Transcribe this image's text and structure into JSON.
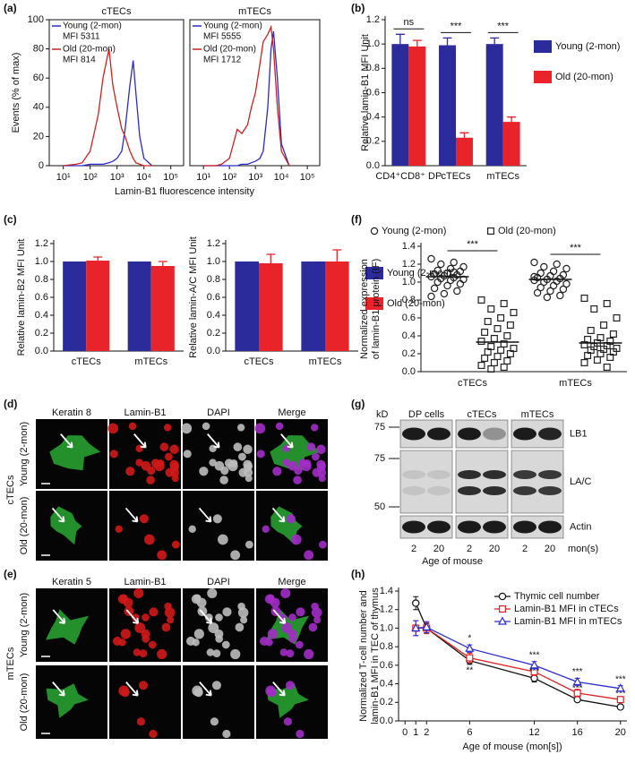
{
  "panel_labels": {
    "a": "(a)",
    "b": "(b)",
    "c": "(c)",
    "f": "(f)",
    "d": "(d)",
    "g": "(g)",
    "e": "(e)",
    "h": "(h)"
  },
  "chart_data": [
    {
      "type": "line",
      "title": "cTECs",
      "y_label": "Events (% of max)",
      "x_label": "Lamin-B1 fluorescence intensity",
      "log_x": true,
      "x": [
        10,
        30,
        50,
        100,
        200,
        300,
        500,
        700,
        1000,
        1500,
        2000,
        3000,
        4000,
        5000,
        7000,
        10000,
        20000
      ],
      "xlim": [
        3,
        300000
      ],
      "xticks": [
        {
          "value": 10,
          "label": "10¹"
        },
        {
          "value": 100,
          "label": "10²"
        },
        {
          "value": 1000,
          "label": "10³"
        },
        {
          "value": 10000,
          "label": "10⁴"
        },
        {
          "value": 100000,
          "label": "10⁵"
        }
      ],
      "ylim": [
        0,
        100
      ],
      "yticks": [
        0,
        20,
        40,
        60,
        80,
        100
      ],
      "legend": "top-left",
      "series": [
        {
          "name": "Young (2-mon)",
          "annotation": "MFI 5311",
          "color": "#2a2ad0",
          "values": [
            0,
            0,
            0,
            1,
            1,
            1,
            2,
            3,
            5,
            10,
            25,
            55,
            72,
            50,
            20,
            5,
            0
          ]
        },
        {
          "name": "Old (20-mon)",
          "annotation": "MFI 814",
          "color": "#d02020",
          "values": [
            0,
            1,
            2,
            10,
            35,
            60,
            80,
            55,
            40,
            25,
            20,
            10,
            5,
            2,
            1,
            0,
            0
          ]
        }
      ]
    },
    {
      "type": "line",
      "title": "mTECs",
      "log_x": true,
      "x": [
        10,
        30,
        50,
        100,
        200,
        300,
        500,
        700,
        1000,
        1500,
        2000,
        3000,
        4000,
        5000,
        7000,
        10000,
        20000
      ],
      "xlim": [
        3,
        300000
      ],
      "xticks": [
        {
          "value": 10,
          "label": "10¹"
        },
        {
          "value": 100,
          "label": "10²"
        },
        {
          "value": 1000,
          "label": "10³"
        },
        {
          "value": 10000,
          "label": "10⁴"
        },
        {
          "value": 100000,
          "label": "10⁵"
        }
      ],
      "ylim": [
        0,
        100
      ],
      "legend": "top-left",
      "series": [
        {
          "name": "Young (2-mon)",
          "annotation": "MFI 5555",
          "color": "#2a2ad0",
          "values": [
            0,
            0,
            0,
            0,
            0,
            1,
            1,
            2,
            3,
            5,
            10,
            40,
            80,
            92,
            60,
            15,
            0
          ]
        },
        {
          "name": "Old (20-mon)",
          "annotation": "MFI 1712",
          "color": "#d02020",
          "values": [
            0,
            0,
            1,
            5,
            25,
            22,
            28,
            40,
            50,
            70,
            85,
            90,
            95,
            80,
            40,
            10,
            0
          ]
        }
      ]
    },
    {
      "type": "bar",
      "y_label": "Relative lamin-B1 MFI Unit",
      "categories": [
        "CD4⁺CD8⁺ DP",
        "cTECs",
        "mTECs"
      ],
      "ylim": [
        0,
        1.2
      ],
      "yticks": [
        {
          "value": 0,
          "label": "0.0"
        },
        0.2,
        0.4,
        0.6,
        0.8,
        {
          "value": 1,
          "label": "1.0"
        },
        1.2
      ],
      "annotations": [
        "ns",
        "***",
        "***"
      ],
      "legend": "right",
      "series": [
        {
          "name": "Young (2-mon)",
          "color": "#2b2b9b",
          "values": [
            1.0,
            0.99,
            1.0
          ],
          "errors": [
            0.08,
            0.06,
            0.05
          ]
        },
        {
          "name": "Old (20-mon)",
          "color": "#e8232a",
          "values": [
            0.98,
            0.23,
            0.36
          ],
          "errors": [
            0.05,
            0.04,
            0.04
          ]
        }
      ]
    },
    {
      "type": "bar",
      "y_label": "Relative lamin-B2 MFI Unit",
      "categories": [
        "cTECs",
        "mTECs"
      ],
      "ylim": [
        0,
        1.2
      ],
      "yticks": [
        {
          "value": 0,
          "label": "0.0"
        },
        0.2,
        0.4,
        0.6,
        0.8,
        {
          "value": 1,
          "label": "1.0"
        },
        1.2
      ],
      "series": [
        {
          "color": "#2b2b9b",
          "values": [
            1.0,
            1.0
          ]
        },
        {
          "color": "#e8232a",
          "values": [
            1.01,
            0.95
          ],
          "errors": [
            0.04,
            0.05
          ]
        }
      ]
    },
    {
      "type": "bar",
      "y_label": "Relative lamin-A/C MFI Unit",
      "categories": [
        "cTECs",
        "mTECs"
      ],
      "ylim": [
        0,
        1.2
      ],
      "yticks": [
        {
          "value": 0,
          "label": "0.0"
        },
        0.2,
        0.4,
        0.6,
        0.8,
        {
          "value": 1,
          "label": "1.0"
        },
        1.2
      ],
      "legend": "right",
      "series": [
        {
          "name": "Young (2-mon)",
          "color": "#2b2b9b",
          "values": [
            1.0,
            1.0
          ]
        },
        {
          "name": "Old (20-mon)",
          "color": "#e8232a",
          "values": [
            0.98,
            1.0
          ],
          "errors": [
            0.1,
            0.13
          ]
        }
      ]
    },
    {
      "type": "scatter",
      "y_label": [
        "Normalized  expression",
        "of lamin-B1 protein (IF)"
      ],
      "categories": [
        "cTECs",
        "mTECs"
      ],
      "ylim": [
        0,
        1.4
      ],
      "yticks": [
        {
          "value": 0,
          "label": "0.0"
        },
        0.2,
        0.4,
        0.6,
        0.8,
        {
          "value": 1,
          "label": "1.0"
        },
        1.2,
        1.4
      ],
      "annotations": [
        "***",
        "***"
      ],
      "legend": "top",
      "series": [
        {
          "name": "Young (2-mon)",
          "marker": "circle",
          "color": "#222",
          "values": [
            [
              1.26,
              1.22,
              1.2,
              1.17,
              1.15,
              1.13,
              1.12,
              1.1,
              1.09,
              1.08,
              1.07,
              1.06,
              1.05,
              1.04,
              1.03,
              1.02,
              1.0,
              0.98,
              0.96,
              0.93,
              0.9,
              0.87,
              0.84,
              1.11
            ],
            [
              1.22,
              1.2,
              1.17,
              1.15,
              1.12,
              1.1,
              1.08,
              1.07,
              1.05,
              1.04,
              1.03,
              1.02,
              1.01,
              1.0,
              0.98,
              0.96,
              0.94,
              0.92,
              0.9,
              0.88,
              0.85,
              0.83,
              1.06
            ]
          ],
          "means": [
            1.06,
            1.03
          ]
        },
        {
          "name": "Old (20-mon)",
          "marker": "square",
          "color": "#222",
          "values": [
            [
              0.8,
              0.76,
              0.7,
              0.66,
              0.6,
              0.56,
              0.52,
              0.48,
              0.44,
              0.4,
              0.37,
              0.34,
              0.31,
              0.28,
              0.26,
              0.24,
              0.22,
              0.2,
              0.17,
              0.15,
              0.12,
              0.1,
              0.07,
              0.05,
              0.03
            ],
            [
              0.82,
              0.76,
              0.7,
              0.6,
              0.52,
              0.46,
              0.42,
              0.38,
              0.36,
              0.34,
              0.32,
              0.3,
              0.29,
              0.28,
              0.26,
              0.25,
              0.24,
              0.22,
              0.2,
              0.18,
              0.16,
              0.13,
              0.1,
              0.05
            ]
          ],
          "means": [
            0.33,
            0.32
          ]
        }
      ]
    },
    {
      "type": "line",
      "y_label": [
        "Normalized T-cell number and",
        "lamin-B1 MFI in TEC of thymus"
      ],
      "x_label": "Age of mouse (mon[s])",
      "x": [
        1,
        2,
        6,
        12,
        16,
        20
      ],
      "xlim": [
        -0.6,
        20.6
      ],
      "xticks": [
        0,
        1,
        2,
        6,
        12,
        16,
        20
      ],
      "ylim": [
        0,
        1.4
      ],
      "yticks": [
        {
          "value": 0,
          "label": "0.0"
        },
        0.2,
        0.4,
        0.6,
        0.8,
        {
          "value": 1,
          "label": "1.0"
        },
        1.2,
        1.4
      ],
      "legend": "top-right",
      "series": [
        {
          "name": "Thymic cell number",
          "marker": "circle",
          "color": "#111",
          "values": [
            1.27,
            1.0,
            0.65,
            0.46,
            0.23,
            0.15
          ],
          "errors": [
            0.07,
            0.05,
            0.04,
            0.04,
            0.02,
            0.02
          ]
        },
        {
          "name": "Lamin-B1 MFI in cTECs",
          "marker": "square",
          "color": "#e02020",
          "values": [
            1.0,
            1.0,
            0.68,
            0.53,
            0.3,
            0.23
          ],
          "errors": [
            0.08,
            0.06,
            0.05,
            0.04,
            0.04,
            0.03
          ],
          "annotations": [
            null,
            null,
            "**",
            "***",
            "***",
            "***"
          ]
        },
        {
          "name": "Lamin-B1 MFI in mTECs",
          "marker": "triangle",
          "color": "#2a2ad0",
          "values": [
            1.0,
            1.01,
            0.78,
            0.6,
            0.42,
            0.35
          ],
          "errors": [
            0.08,
            0.06,
            0.04,
            0.04,
            0.04,
            0.03
          ],
          "annotations": [
            null,
            null,
            "*",
            "***",
            "***",
            "***"
          ]
        }
      ]
    }
  ],
  "panel_d": {
    "columns": [
      "Keratin 8",
      "Lamin-B1",
      "DAPI",
      "Merge"
    ],
    "rows": [
      "Young (2-mon)",
      "Old (20-mon)"
    ],
    "group": "cTECs"
  },
  "panel_e": {
    "columns": [
      "Keratin 5",
      "Lamin-B1",
      "DAPI",
      "Merge"
    ],
    "rows": [
      "Young (2-mon)",
      "Old (20-mon)"
    ],
    "group": "mTECs"
  },
  "blot": {
    "kd_unit": "kD",
    "markers": [
      "75",
      "75",
      "50"
    ],
    "groups": [
      "DP cells",
      "cTECs",
      "mTECs"
    ],
    "bands": [
      "LB1",
      "LA/C",
      "Actin"
    ],
    "ages": [
      "2",
      "20",
      "2",
      "20",
      "2",
      "20"
    ],
    "age_unit": "mon(s)",
    "x_label": "Age of mouse"
  }
}
